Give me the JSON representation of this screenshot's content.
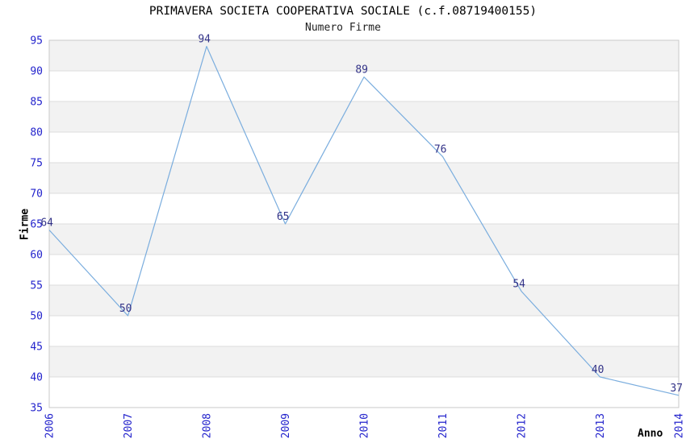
{
  "chart_data": {
    "type": "line",
    "title": "PRIMAVERA SOCIETA COOPERATIVA SOCIALE (c.f.08719400155)",
    "subtitle": "Numero Firme",
    "xlabel": "Anno",
    "ylabel": "Firme",
    "categories": [
      "2006",
      "2007",
      "2008",
      "2009",
      "2010",
      "2011",
      "2012",
      "2013",
      "2014"
    ],
    "series": [
      {
        "name": "Numero Firme",
        "values": [
          64,
          50,
          94,
          65,
          89,
          76,
          54,
          40,
          37
        ]
      }
    ],
    "ylim": [
      35,
      95
    ],
    "ytick_step": 5,
    "yticks": [
      35,
      40,
      45,
      50,
      55,
      60,
      65,
      70,
      75,
      80,
      85,
      90,
      95
    ],
    "grid": true,
    "legend_position": "none",
    "data_labels_visible": true,
    "colors": {
      "line": "#7aadde",
      "tick_label": "#2323cc",
      "data_label": "#333388",
      "band_fill": "#f2f2f2",
      "band_alt_fill": "#ffffff",
      "gridline": "#dcdcdc",
      "plot_border": "#c9c9c9",
      "title_text": "#000000",
      "background": "#ffffff"
    }
  }
}
